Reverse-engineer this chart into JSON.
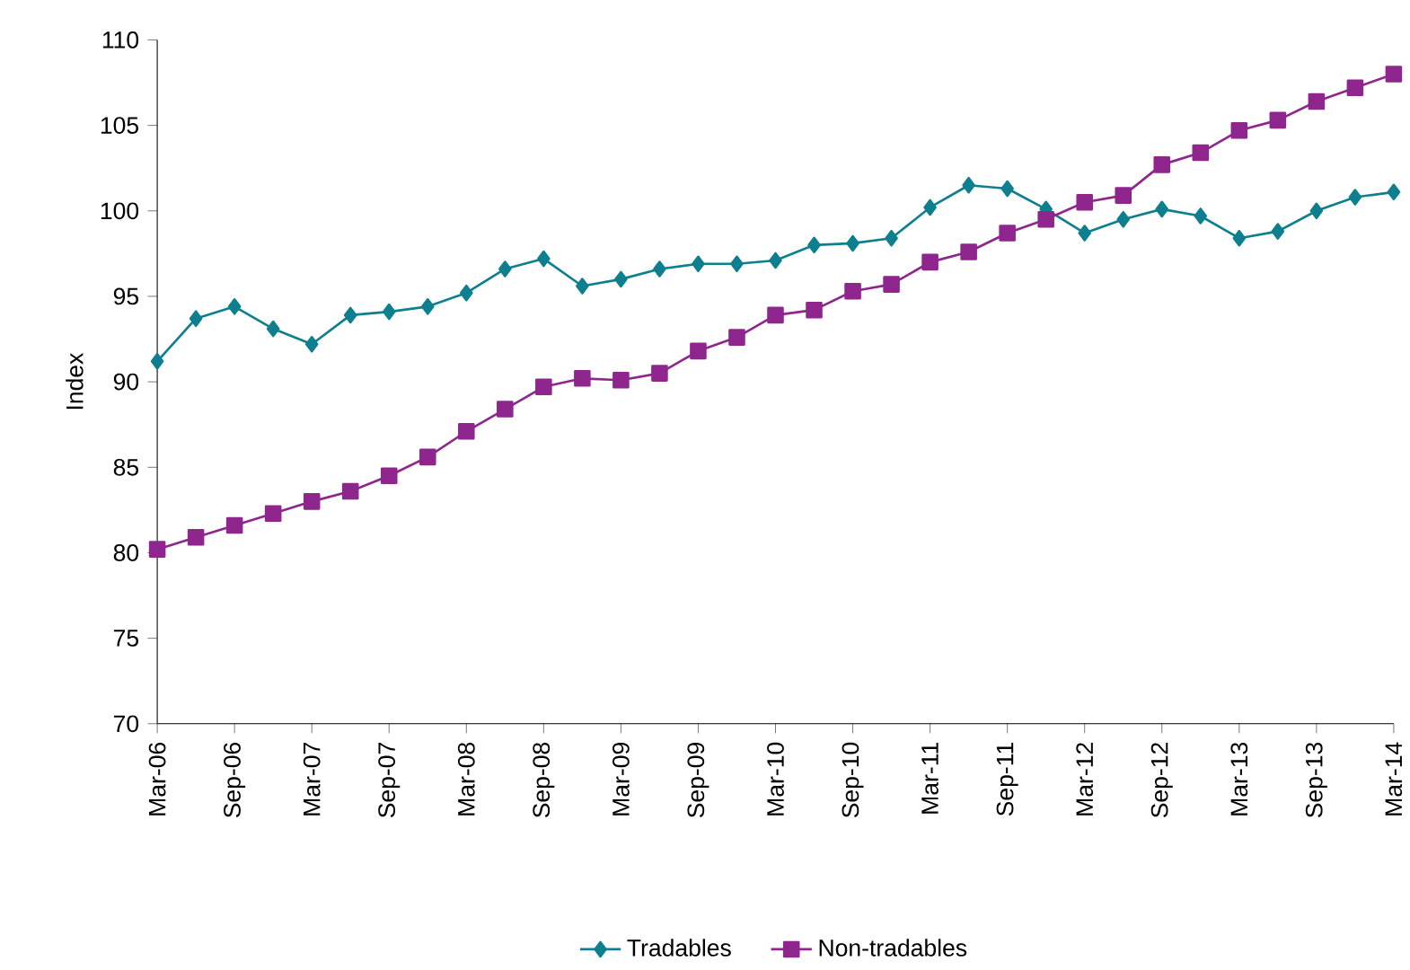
{
  "chart_data": {
    "type": "line",
    "ylabel": "Index",
    "categories": [
      "Mar-06",
      null,
      "Sep-06",
      null,
      "Mar-07",
      null,
      "Sep-07",
      null,
      "Mar-08",
      null,
      "Sep-08",
      null,
      "Mar-09",
      null,
      "Sep-09",
      null,
      "Mar-10",
      null,
      "Sep-10",
      null,
      "Mar-11",
      null,
      "Sep-11",
      null,
      "Mar-12",
      null,
      "Sep-12",
      null,
      "Mar-13",
      null,
      "Sep-13",
      null,
      "Mar-14"
    ],
    "series": [
      {
        "name": "Tradables",
        "color": "#0e7f8f",
        "marker": "diamond",
        "values": [
          91.2,
          93.7,
          94.4,
          93.1,
          92.2,
          93.9,
          94.1,
          94.4,
          95.2,
          96.6,
          97.2,
          95.6,
          96.0,
          96.6,
          96.9,
          96.9,
          97.1,
          98.0,
          98.1,
          98.4,
          100.2,
          101.5,
          101.3,
          100.1,
          98.7,
          99.5,
          100.1,
          99.7,
          98.4,
          98.8,
          100.0,
          100.8,
          101.1
        ]
      },
      {
        "name": "Non-tradables",
        "color": "#8e268e",
        "marker": "square",
        "values": [
          80.2,
          80.9,
          81.6,
          82.3,
          83.0,
          83.6,
          84.5,
          85.6,
          87.1,
          88.4,
          89.7,
          90.2,
          90.1,
          90.5,
          91.8,
          92.6,
          93.9,
          94.2,
          95.3,
          95.7,
          97.0,
          97.6,
          98.7,
          99.5,
          100.5,
          100.9,
          102.7,
          103.4,
          104.7,
          105.3,
          106.4,
          107.2,
          108.0
        ]
      }
    ],
    "ylim": [
      70,
      110
    ],
    "yticks": [
      70,
      75,
      80,
      85,
      90,
      95,
      100,
      105,
      110
    ],
    "grid": false,
    "legend": "bottom",
    "line_style": "solid"
  }
}
